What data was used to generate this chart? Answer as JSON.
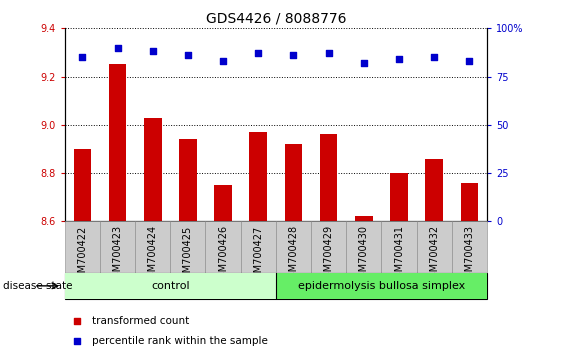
{
  "title": "GDS4426 / 8088776",
  "samples": [
    "GSM700422",
    "GSM700423",
    "GSM700424",
    "GSM700425",
    "GSM700426",
    "GSM700427",
    "GSM700428",
    "GSM700429",
    "GSM700430",
    "GSM700431",
    "GSM700432",
    "GSM700433"
  ],
  "transformed_count": [
    8.9,
    9.25,
    9.03,
    8.94,
    8.75,
    8.97,
    8.92,
    8.96,
    8.62,
    8.8,
    8.86,
    8.76
  ],
  "percentile_rank": [
    85,
    90,
    88,
    86,
    83,
    87,
    86,
    87,
    82,
    84,
    85,
    83
  ],
  "bar_baseline": 8.6,
  "ylim_left": [
    8.6,
    9.4
  ],
  "ylim_right": [
    0,
    100
  ],
  "yticks_left": [
    8.6,
    8.8,
    9.0,
    9.2,
    9.4
  ],
  "yticks_right": [
    0,
    25,
    50,
    75,
    100
  ],
  "bar_color": "#cc0000",
  "dot_color": "#0000cc",
  "grid_color": "#000000",
  "n_control": 6,
  "n_disease": 6,
  "control_label": "control",
  "disease_label": "epidermolysis bullosa simplex",
  "disease_state_label": "disease state",
  "legend_bar_label": "transformed count",
  "legend_dot_label": "percentile rank within the sample",
  "control_bg": "#ccffcc",
  "disease_bg": "#66ee66",
  "tick_bg": "#cccccc",
  "title_fontsize": 10,
  "tick_fontsize": 7,
  "label_fontsize": 7
}
